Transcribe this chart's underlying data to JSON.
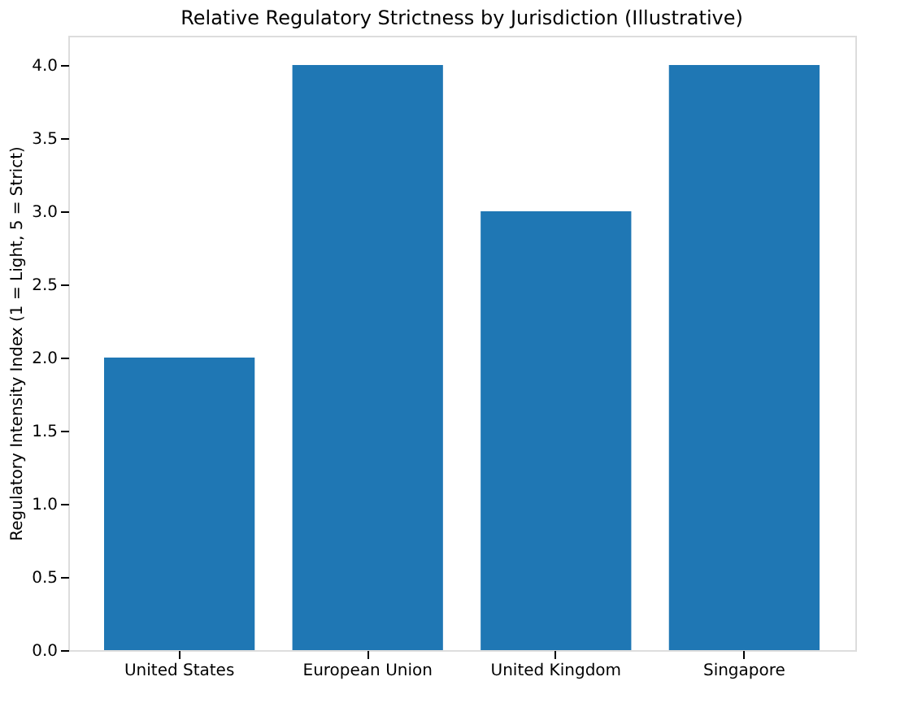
{
  "chart_data": {
    "type": "bar",
    "title": "Relative Regulatory Strictness by Jurisdiction (Illustrative)",
    "ylabel": "Regulatory Intensity Index (1 = Light, 5 = Strict)",
    "categories": [
      "United States",
      "European Union",
      "United Kingdom",
      "Singapore"
    ],
    "values": [
      2,
      4,
      3,
      4
    ],
    "color": "#1f77b4",
    "ylim": [
      0,
      4.2
    ],
    "yticks": [
      {
        "value": 0,
        "label": "0.0"
      },
      0.5,
      {
        "value": 1,
        "label": "1.0"
      },
      1.5,
      {
        "value": 2,
        "label": "2.0"
      },
      2.5,
      {
        "value": 3,
        "label": "3.0"
      },
      3.5,
      {
        "value": 4,
        "label": "4.0"
      }
    ],
    "grid": false
  }
}
